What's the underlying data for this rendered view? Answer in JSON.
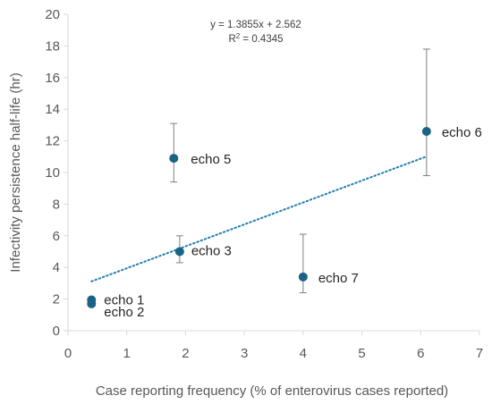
{
  "chart_data": {
    "type": "scatter",
    "xlabel": "Case reporting frequency (% of enterovirus cases reported)",
    "ylabel": "Infectivity persistence half-life (hr)",
    "xlim": [
      0,
      7
    ],
    "ylim": [
      0,
      20
    ],
    "x_ticks": [
      "0",
      "1",
      "2",
      "3",
      "4",
      "5",
      "6",
      "7"
    ],
    "y_ticks": [
      "0",
      "2",
      "4",
      "6",
      "8",
      "10",
      "12",
      "14",
      "16",
      "18",
      "20"
    ],
    "grid": false,
    "legend": "none",
    "colors": {
      "points": "#1a6384",
      "trendline": "#1f7fb0",
      "error_bars": "#7f7f7f",
      "axes": "#d9d9d9",
      "text": "#595959"
    },
    "points": [
      {
        "label": "echo 1",
        "x": 0.4,
        "y": 1.95
      },
      {
        "label": "echo 2",
        "x": 0.4,
        "y": 1.7
      },
      {
        "label": "echo 3",
        "x": 1.9,
        "y": 5.0,
        "y_low": 4.3,
        "y_high": 6.0
      },
      {
        "label": "echo 5",
        "x": 1.8,
        "y": 10.9,
        "y_low": 9.4,
        "y_high": 13.1
      },
      {
        "label": "echo 6",
        "x": 6.1,
        "y": 12.6,
        "y_low": 9.8,
        "y_high": 17.8
      },
      {
        "label": "echo 7",
        "x": 4.0,
        "y": 3.4,
        "y_low": 2.4,
        "y_high": 6.1
      }
    ],
    "trendline": {
      "slope": 1.3855,
      "intercept": 2.562,
      "x_range": [
        0.4,
        6.1
      ],
      "equation": "y = 1.3855x + 2.562",
      "r2_label": "R",
      "r2_value": " = 0.4345"
    }
  }
}
